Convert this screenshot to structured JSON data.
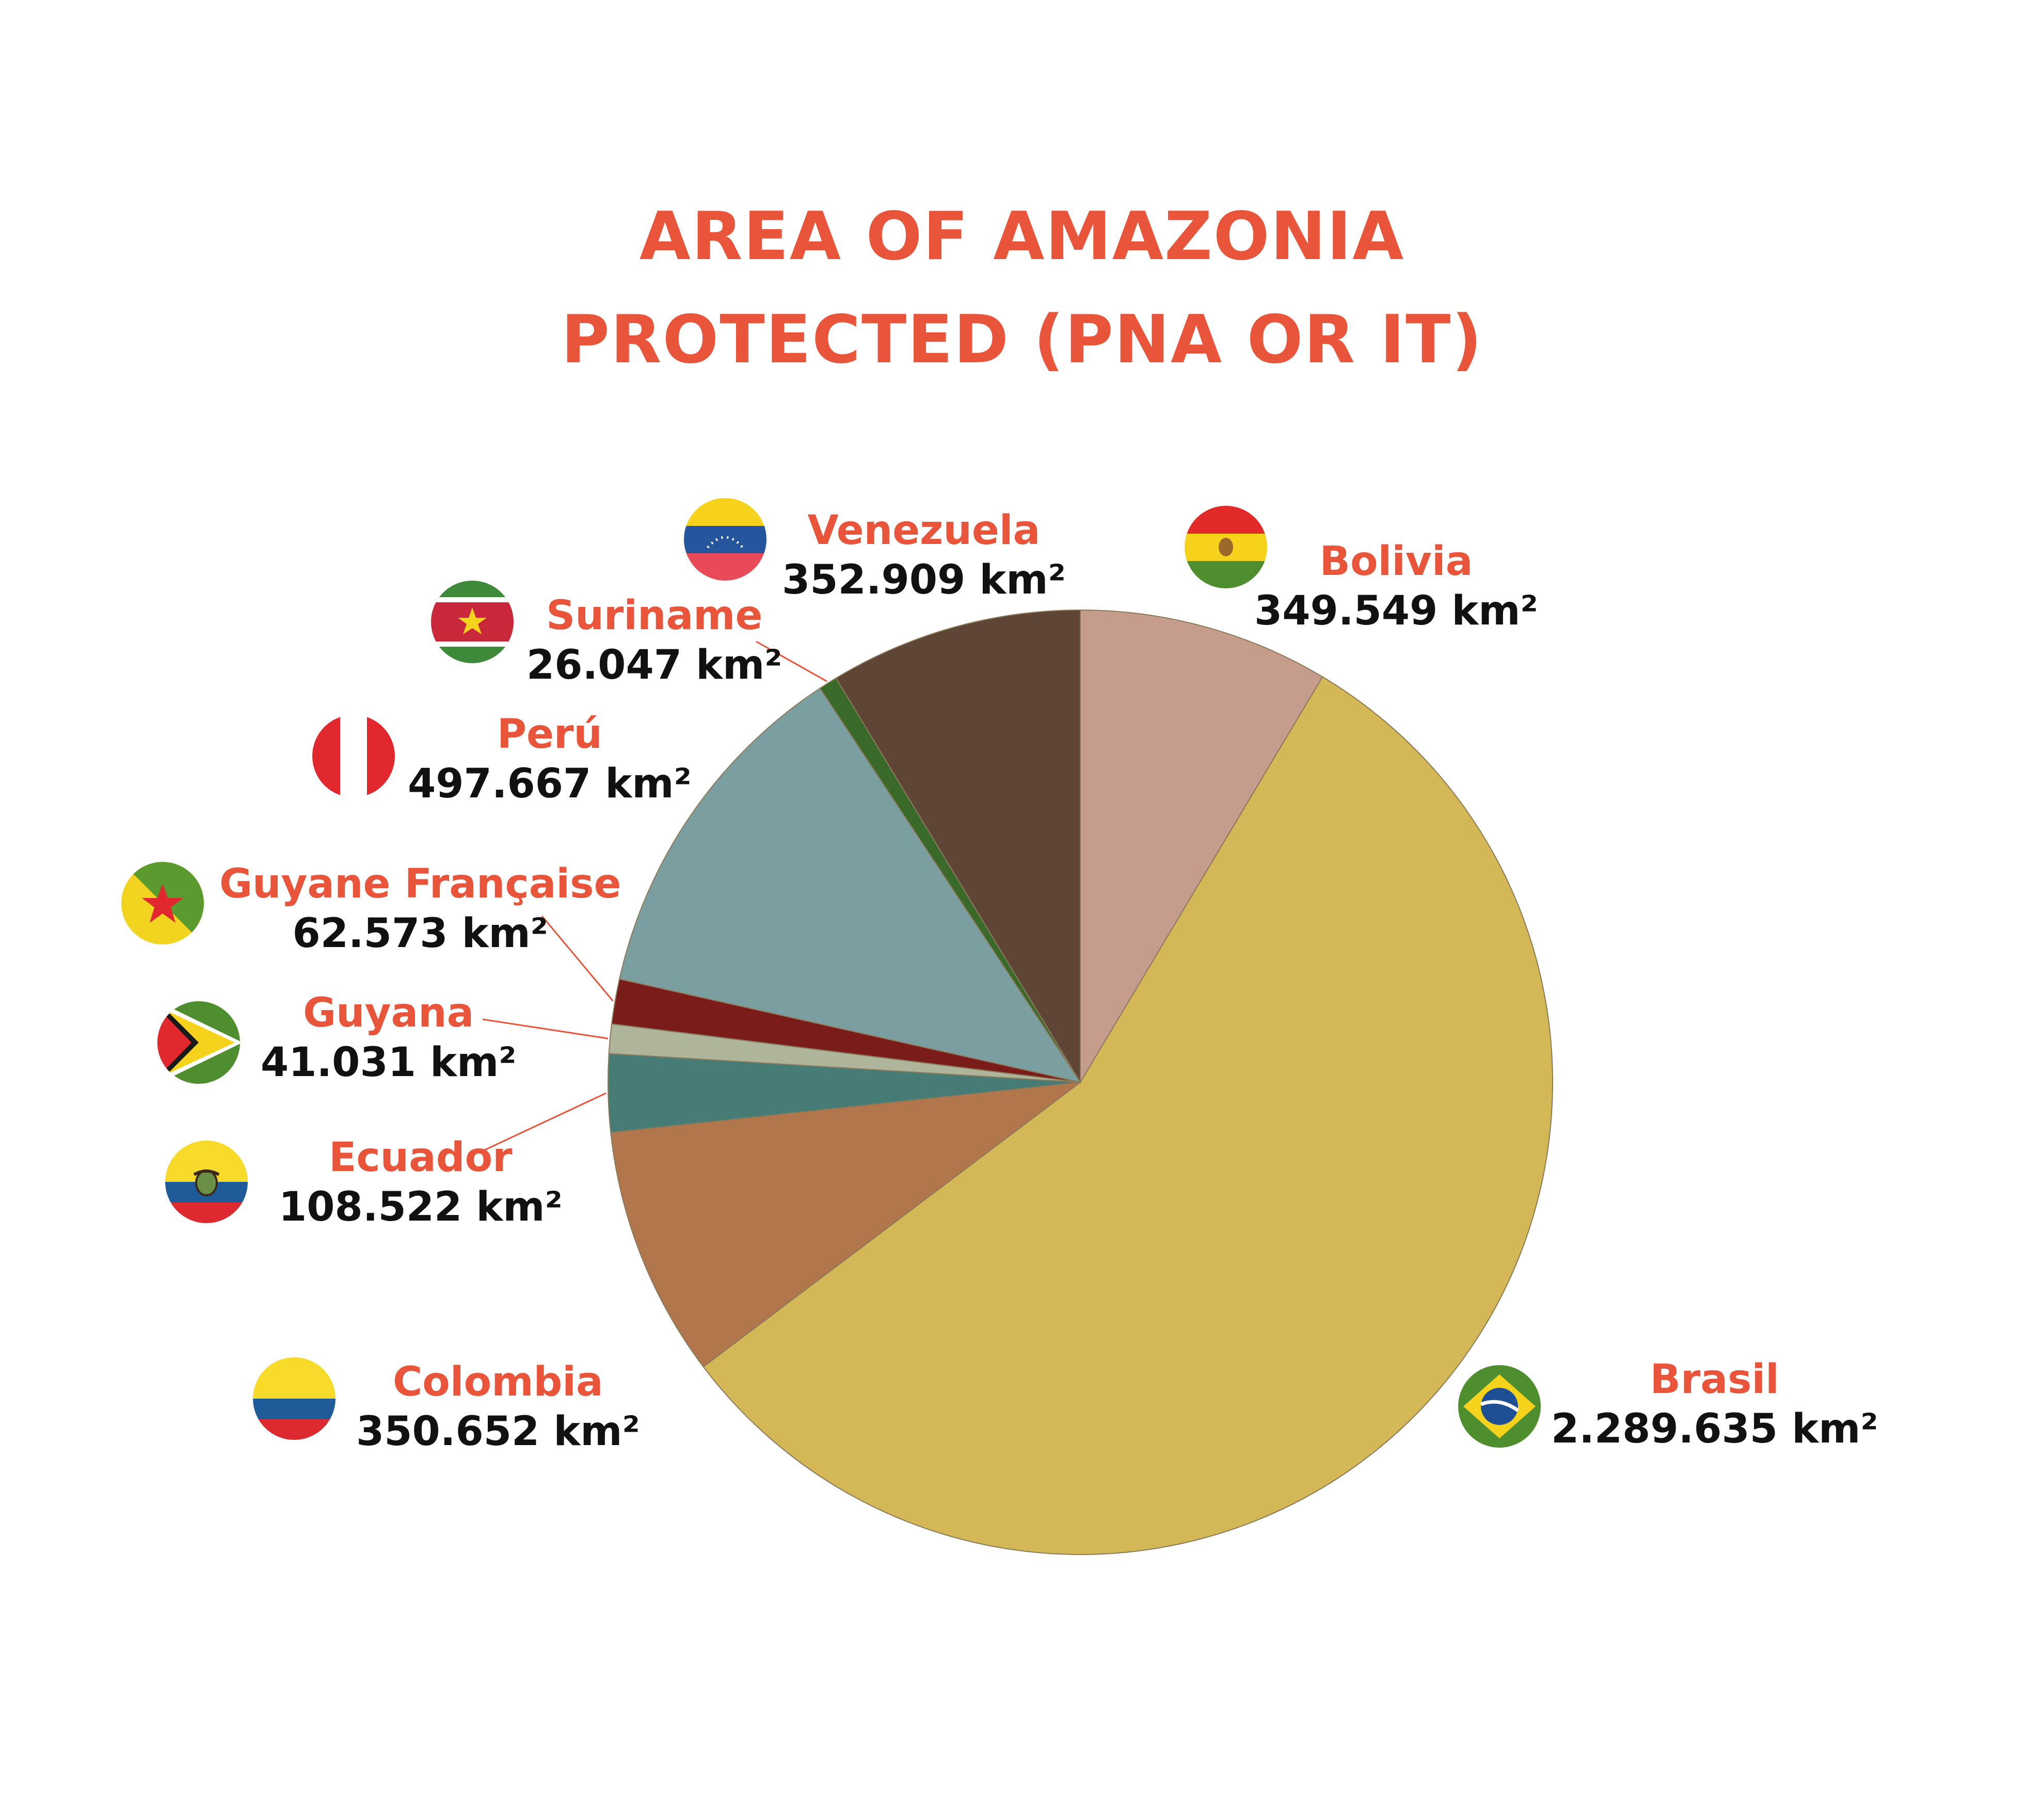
{
  "title": {
    "line1": "AREA OF AMAZONIA",
    "line2": "PROTECTED (PNA OR IT)"
  },
  "chart_data": {
    "type": "pie",
    "title": "AREA OF AMAZONIA PROTECTED (PNA OR IT)",
    "unit": "km²",
    "slices": [
      {
        "name": "Bolivia",
        "value": 349549,
        "label": "349.549 km²",
        "color": "#C69C8C"
      },
      {
        "name": "Brasil",
        "value": 2289635,
        "label": "2.289.635 km²",
        "color": "#D4B857"
      },
      {
        "name": "Colombia",
        "value": 350652,
        "label": "350.652 km²",
        "color": "#B2764C"
      },
      {
        "name": "Ecuador",
        "value": 108522,
        "label": "108.522 km²",
        "color": "#477C76"
      },
      {
        "name": "Guyana",
        "value": 41031,
        "label": "41.031 km²",
        "color": "#AEB59A"
      },
      {
        "name": "Guyane Française",
        "value": 62573,
        "label": "62.573 km²",
        "color": "#7A1C1A"
      },
      {
        "name": "Perú",
        "value": 497667,
        "label": "497.667 km²",
        "color": "#7B9FA1"
      },
      {
        "name": "Suriname",
        "value": 26047,
        "label": "26.047 km²",
        "color": "#3A6A2A"
      },
      {
        "name": "Venezuela",
        "value": 352909,
        "label": "352.909 km²",
        "color": "#5F4535"
      }
    ]
  },
  "flags": {
    "bolivia": "bolivia-flag-icon",
    "brasil": "brazil-flag-icon",
    "colombia": "colombia-flag-icon",
    "ecuador": "ecuador-flag-icon",
    "guyana": "guyana-flag-icon",
    "guyane": "french-guiana-flag-icon",
    "peru": "peru-flag-icon",
    "suriname": "suriname-flag-icon",
    "venezuela": "venezuela-flag-icon"
  },
  "colors": {
    "accent": "#E8553A",
    "text": "#111111",
    "leader": "#E8553A"
  }
}
